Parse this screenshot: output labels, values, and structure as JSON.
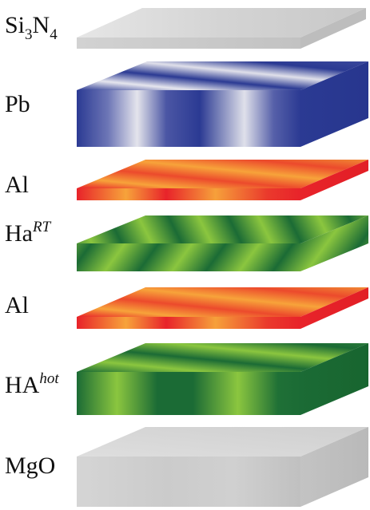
{
  "layers": [
    {
      "id": "si3n4",
      "label": {
        "base": "Si",
        "sub": "3",
        "mid": "N",
        "sub2": "4"
      },
      "material": "silicon-nitride",
      "colors": [
        "#e3e3e3",
        "#cfcfcf",
        "#bcbcbc"
      ]
    },
    {
      "id": "pb",
      "label": {
        "base": "Pb"
      },
      "material": "lead",
      "colors": [
        "#2b3a93",
        "#e4e4ec",
        "#2b3a93"
      ]
    },
    {
      "id": "al-top",
      "label": {
        "base": "Al"
      },
      "material": "aluminium",
      "colors": [
        "#e8232a",
        "#f7a33a",
        "#e8232a"
      ]
    },
    {
      "id": "ha-rt",
      "label": {
        "base": "Ha",
        "sup": "RT"
      },
      "material": "ha-room-temperature",
      "colors": [
        "#1b6b35",
        "#8bc63f",
        "#1b6b35"
      ]
    },
    {
      "id": "al-bottom",
      "label": {
        "base": "Al"
      },
      "material": "aluminium",
      "colors": [
        "#e8232a",
        "#f7a33a",
        "#e8232a"
      ]
    },
    {
      "id": "ha-hot",
      "label": {
        "base": "HA",
        "sup": "hot"
      },
      "material": "ha-hot",
      "colors": [
        "#1b6b35",
        "#8bc63f",
        "#1b6b35"
      ]
    },
    {
      "id": "mgo",
      "label": {
        "base": "MgO"
      },
      "material": "magnesium-oxide",
      "colors": [
        "#d8d8d8",
        "#c7c7c7",
        "#bdbdbd"
      ]
    }
  ]
}
